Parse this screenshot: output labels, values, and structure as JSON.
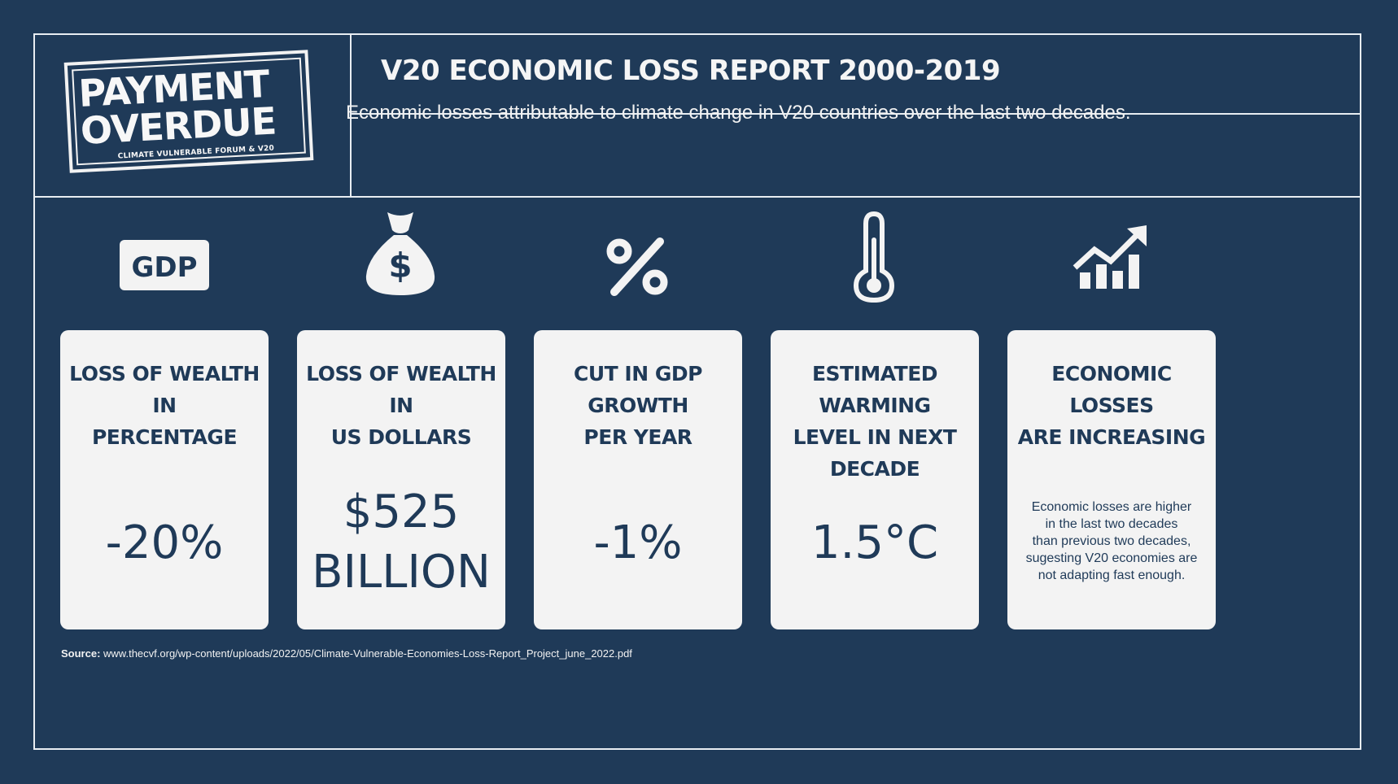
{
  "logo": {
    "line1": "PAYMENT",
    "line2": "OVERDUE",
    "subline": "CLIMATE VULNERABLE FORUM & V20"
  },
  "header": {
    "title": "V20 ECONOMIC LOSS REPORT 2000-2019",
    "subtitle": "Economic losses attributable to climate change in V20 countries over the last two decades."
  },
  "icons": {
    "gdp_label": "GDP",
    "names": [
      "gdp-icon",
      "money-bag-icon",
      "percent-icon",
      "thermometer-icon",
      "trend-up-chart-icon"
    ]
  },
  "cards": [
    {
      "title_line1": "LOSS OF WEALTH IN",
      "title_line2": "PERCENTAGE",
      "value": "-20%"
    },
    {
      "title_line1": "LOSS OF WEALTH IN",
      "title_line2": "US DOLLARS",
      "value_line1": "$525",
      "value_line2": "BILLION"
    },
    {
      "title_line1": "CUT IN GDP GROWTH",
      "title_line2": "PER YEAR",
      "value": "-1%"
    },
    {
      "title_line1": "ESTIMATED WARMING",
      "title_line2": "LEVEL IN NEXT DECADE",
      "value": "1.5°C"
    },
    {
      "title_line1": "ECONOMIC LOSSES",
      "title_line2": "ARE INCREASING",
      "note_lines": [
        "Economic losses are higher",
        "in the last two decades",
        "than previous two decades,",
        "sugesting V20 economies are",
        "not adapting fast enough."
      ]
    }
  ],
  "source": {
    "label": "Source:",
    "url": "www.thecvf.org/wp-content/uploads/2022/05/Climate-Vulnerable-Economies-Loss-Report_Project_june_2022.pdf"
  },
  "colors": {
    "background": "#1f3a58",
    "card": "#f3f3f3",
    "text_light": "#f2f2f2"
  }
}
